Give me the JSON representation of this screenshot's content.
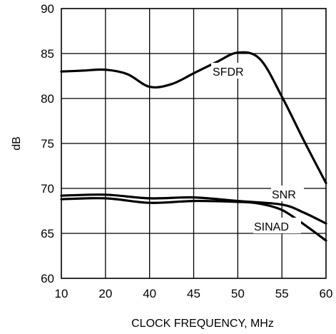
{
  "chart_data": {
    "type": "line",
    "title": "",
    "xlabel": "CLOCK FREQUENCY, MHz",
    "ylabel": "dB",
    "x_ticks": [
      "10",
      "20",
      "40",
      "45",
      "50",
      "55",
      "60"
    ],
    "ylim": [
      60,
      90
    ],
    "y_ticks": [
      60,
      65,
      70,
      75,
      80,
      85,
      90
    ],
    "grid": true,
    "series": [
      {
        "name": "SFDR",
        "x": [
          0,
          0.5,
          1,
          1.5,
          2,
          2.5,
          3,
          3.5,
          4,
          4.5,
          5,
          5.5,
          6
        ],
        "values": [
          83.0,
          83.1,
          83.2,
          82.7,
          81.3,
          81.6,
          82.8,
          84.0,
          85.1,
          84.4,
          80.2,
          75.3,
          70.6
        ]
      },
      {
        "name": "SNR",
        "x": [
          0,
          1,
          2,
          3,
          4,
          5,
          5.5,
          6
        ],
        "values": [
          69.2,
          69.3,
          68.9,
          69.0,
          68.6,
          68.2,
          67.3,
          66.1
        ]
      },
      {
        "name": "SINAD",
        "x": [
          0,
          1,
          2,
          3,
          4,
          4.5,
          5,
          5.5,
          6
        ],
        "values": [
          68.8,
          68.9,
          68.4,
          68.6,
          68.5,
          68.3,
          67.6,
          66.0,
          64.2
        ]
      }
    ]
  }
}
